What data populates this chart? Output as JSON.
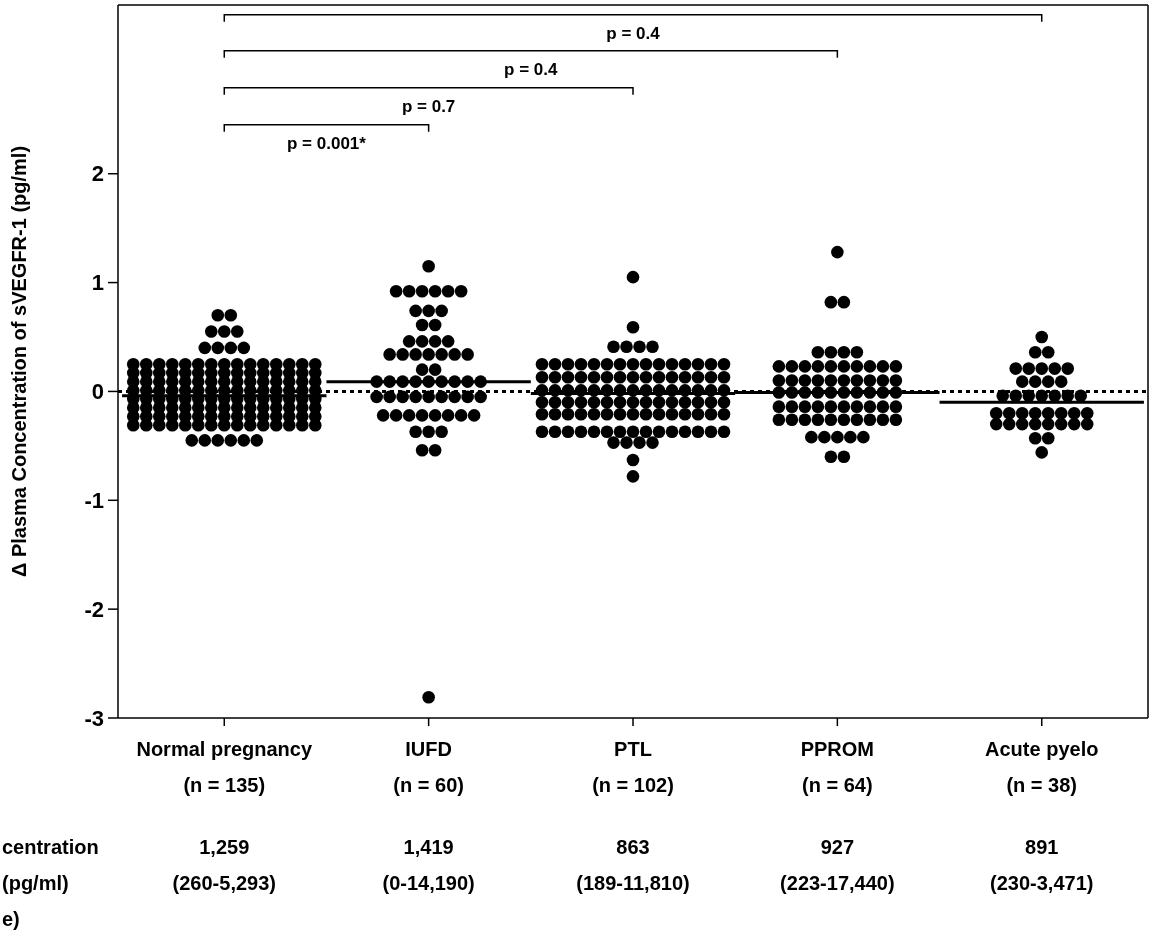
{
  "chart_data": {
    "type": "scatter",
    "ylabel": "Δ Plasma Concentration of sVEGFR-1 (pg/ml)",
    "categories": [
      "Normal pregnancy\n(n = 135)",
      "IUFD\n(n = 60)",
      "PTL\n(n = 102)",
      "PPROM\n(n = 64)",
      "Acute pyelo\n(n = 38)"
    ],
    "ylim": [
      -3,
      3.55
    ],
    "yticks": [
      -3,
      -2,
      -1,
      0,
      1,
      2
    ],
    "grid": false,
    "marker": "circle",
    "ref_lines": [
      {
        "axis": "y",
        "value": 0,
        "line_style": "dotted",
        "color": "#000000"
      }
    ],
    "annotations": [
      "p = 0.001*",
      "p = 0.7",
      "p = 0.4",
      "p = 0.4",
      "1,259\n(260-5,293)",
      "1,419\n(0-14,190)",
      "863\n(189-11,810)",
      "927\n(223-17,440)",
      "891\n(230-3,471)",
      "centration\n(pg/ml)\ne)"
    ],
    "series": [
      {
        "type": "box",
        "color": "#000000",
        "boxes": [
          {
            "low": -0.04,
            "q1": -0.04,
            "median": -0.04,
            "q3": -0.04,
            "high": -0.04
          },
          {
            "low": 0.09,
            "q1": 0.09,
            "median": 0.09,
            "q3": 0.09,
            "high": 0.09
          },
          {
            "low": -0.02,
            "q1": -0.02,
            "median": -0.02,
            "q3": -0.02,
            "high": -0.02
          },
          {
            "low": -0.01,
            "q1": -0.01,
            "median": -0.01,
            "q3": -0.01,
            "high": -0.01
          },
          {
            "low": -0.1,
            "q1": -0.1,
            "median": -0.1,
            "q3": -0.1,
            "high": -0.1
          }
        ]
      },
      {
        "color": "#000000",
        "x": [
          "Normal pregnancy\n(n = 135)",
          "Normal pregnancy\n(n = 135)",
          "Normal pregnancy\n(n = 135)",
          "Normal pregnancy\n(n = 135)",
          "Normal pregnancy\n(n = 135)",
          "Normal pregnancy\n(n = 135)",
          "Normal pregnancy\n(n = 135)",
          "Normal pregnancy\n(n = 135)",
          "Normal pregnancy\n(n = 135)",
          "Normal pregnancy\n(n = 135)",
          "Normal pregnancy\n(n = 135)",
          "Normal pregnancy\n(n = 135)",
          "Normal pregnancy\n(n = 135)",
          "Normal pregnancy\n(n = 135)",
          "Normal pregnancy\n(n = 135)",
          "Normal pregnancy\n(n = 135)",
          "Normal pregnancy\n(n = 135)",
          "Normal pregnancy\n(n = 135)",
          "Normal pregnancy\n(n = 135)",
          "Normal pregnancy\n(n = 135)",
          "Normal pregnancy\n(n = 135)",
          "Normal pregnancy\n(n = 135)",
          "Normal pregnancy\n(n = 135)",
          "Normal pregnancy\n(n = 135)",
          "Normal pregnancy\n(n = 135)",
          "Normal pregnancy\n(n = 135)",
          "Normal pregnancy\n(n = 135)",
          "Normal pregnancy\n(n = 135)",
          "Normal pregnancy\n(n = 135)",
          "Normal pregnancy\n(n = 135)",
          "Normal pregnancy\n(n = 135)",
          "Normal pregnancy\n(n = 135)",
          "Normal pregnancy\n(n = 135)",
          "Normal pregnancy\n(n = 135)",
          "Normal pregnancy\n(n = 135)",
          "Normal pregnancy\n(n = 135)",
          "Normal pregnancy\n(n = 135)",
          "Normal pregnancy\n(n = 135)",
          "Normal pregnancy\n(n = 135)",
          "Normal pregnancy\n(n = 135)",
          "Normal pregnancy\n(n = 135)",
          "Normal pregnancy\n(n = 135)",
          "Normal pregnancy\n(n = 135)",
          "Normal pregnancy\n(n = 135)",
          "Normal pregnancy\n(n = 135)",
          "Normal pregnancy\n(n = 135)",
          "Normal pregnancy\n(n = 135)",
          "Normal pregnancy\n(n = 135)",
          "Normal pregnancy\n(n = 135)",
          "Normal pregnancy\n(n = 135)",
          "Normal pregnancy\n(n = 135)",
          "Normal pregnancy\n(n = 135)",
          "Normal pregnancy\n(n = 135)",
          "Normal pregnancy\n(n = 135)",
          "Normal pregnancy\n(n = 135)",
          "Normal pregnancy\n(n = 135)",
          "Normal pregnancy\n(n = 135)",
          "Normal pregnancy\n(n = 135)",
          "Normal pregnancy\n(n = 135)",
          "Normal pregnancy\n(n = 135)",
          "Normal pregnancy\n(n = 135)",
          "Normal pregnancy\n(n = 135)",
          "Normal pregnancy\n(n = 135)",
          "Normal pregnancy\n(n = 135)",
          "Normal pregnancy\n(n = 135)",
          "Normal pregnancy\n(n = 135)",
          "Normal pregnancy\n(n = 135)",
          "Normal pregnancy\n(n = 135)",
          "Normal pregnancy\n(n = 135)",
          "Normal pregnancy\n(n = 135)",
          "Normal pregnancy\n(n = 135)",
          "Normal pregnancy\n(n = 135)",
          "Normal pregnancy\n(n = 135)",
          "Normal pregnancy\n(n = 135)",
          "Normal pregnancy\n(n = 135)",
          "Normal pregnancy\n(n = 135)",
          "Normal pregnancy\n(n = 135)",
          "Normal pregnancy\n(n = 135)",
          "Normal pregnancy\n(n = 135)",
          "Normal pregnancy\n(n = 135)",
          "Normal pregnancy\n(n = 135)",
          "Normal pregnancy\n(n = 135)",
          "Normal pregnancy\n(n = 135)",
          "Normal pregnancy\n(n = 135)",
          "Normal pregnancy\n(n = 135)",
          "Normal pregnancy\n(n = 135)",
          "Normal pregnancy\n(n = 135)",
          "Normal pregnancy\n(n = 135)",
          "Normal pregnancy\n(n = 135)",
          "Normal pregnancy\n(n = 135)",
          "Normal pregnancy\n(n = 135)",
          "Normal pregnancy\n(n = 135)",
          "Normal pregnancy\n(n = 135)",
          "Normal pregnancy\n(n = 135)",
          "Normal pregnancy\n(n = 135)",
          "Normal pregnancy\n(n = 135)",
          "Normal pregnancy\n(n = 135)",
          "Normal pregnancy\n(n = 135)",
          "Normal pregnancy\n(n = 135)",
          "Normal pregnancy\n(n = 135)",
          "Normal pregnancy\n(n = 135)",
          "Normal pregnancy\n(n = 135)",
          "Normal pregnancy\n(n = 135)",
          "Normal pregnancy\n(n = 135)",
          "Normal pregnancy\n(n = 135)",
          "Normal pregnancy\n(n = 135)",
          "Normal pregnancy\n(n = 135)",
          "Normal pregnancy\n(n = 135)",
          "Normal pregnancy\n(n = 135)",
          "Normal pregnancy\n(n = 135)",
          "Normal pregnancy\n(n = 135)",
          "Normal pregnancy\n(n = 135)",
          "Normal pregnancy\n(n = 135)",
          "Normal pregnancy\n(n = 135)",
          "Normal pregnancy\n(n = 135)",
          "Normal pregnancy\n(n = 135)",
          "Normal pregnancy\n(n = 135)",
          "Normal pregnancy\n(n = 135)",
          "Normal pregnancy\n(n = 135)",
          "Normal pregnancy\n(n = 135)",
          "Normal pregnancy\n(n = 135)",
          "Normal pregnancy\n(n = 135)",
          "Normal pregnancy\n(n = 135)",
          "Normal pregnancy\n(n = 135)",
          "Normal pregnancy\n(n = 135)",
          "Normal pregnancy\n(n = 135)",
          "Normal pregnancy\n(n = 135)",
          "Normal pregnancy\n(n = 135)",
          "Normal pregnancy\n(n = 135)",
          "Normal pregnancy\n(n = 135)",
          "Normal pregnancy\n(n = 135)",
          "Normal pregnancy\n(n = 135)",
          "Normal pregnancy\n(n = 135)",
          "Normal pregnancy\n(n = 135)",
          "Normal pregnancy\n(n = 135)"
        ],
        "values": [
          0.7,
          0.7,
          0.55,
          0.55,
          0.55,
          0.4,
          0.4,
          0.4,
          0.4,
          0.25,
          0.25,
          0.25,
          0.25,
          0.25,
          0.25,
          0.25,
          0.25,
          0.25,
          0.25,
          0.25,
          0.25,
          0.25,
          0.25,
          0.25,
          0.17,
          0.17,
          0.17,
          0.17,
          0.17,
          0.17,
          0.17,
          0.17,
          0.17,
          0.17,
          0.17,
          0.17,
          0.17,
          0.17,
          0.17,
          0.09,
          0.09,
          0.09,
          0.09,
          0.09,
          0.09,
          0.09,
          0.09,
          0.09,
          0.09,
          0.09,
          0.09,
          0.09,
          0.09,
          0.09,
          0.01,
          0.01,
          0.01,
          0.01,
          0.01,
          0.01,
          0.01,
          0.01,
          0.01,
          0.01,
          0.01,
          0.01,
          0.01,
          0.01,
          0.01,
          -0.07,
          -0.07,
          -0.07,
          -0.07,
          -0.07,
          -0.07,
          -0.07,
          -0.07,
          -0.07,
          -0.07,
          -0.07,
          -0.07,
          -0.07,
          -0.07,
          -0.07,
          -0.15,
          -0.15,
          -0.15,
          -0.15,
          -0.15,
          -0.15,
          -0.15,
          -0.15,
          -0.15,
          -0.15,
          -0.15,
          -0.15,
          -0.15,
          -0.15,
          -0.15,
          -0.23,
          -0.23,
          -0.23,
          -0.23,
          -0.23,
          -0.23,
          -0.23,
          -0.23,
          -0.23,
          -0.23,
          -0.23,
          -0.23,
          -0.23,
          -0.23,
          -0.23,
          -0.31,
          -0.31,
          -0.31,
          -0.31,
          -0.31,
          -0.31,
          -0.31,
          -0.31,
          -0.31,
          -0.31,
          -0.31,
          -0.31,
          -0.31,
          -0.31,
          -0.31,
          -0.45,
          -0.45,
          -0.45,
          -0.45,
          -0.45,
          -0.45
        ]
      },
      {
        "color": "#000000",
        "x": [
          "IUFD\n(n = 60)",
          "IUFD\n(n = 60)",
          "IUFD\n(n = 60)",
          "IUFD\n(n = 60)",
          "IUFD\n(n = 60)",
          "IUFD\n(n = 60)",
          "IUFD\n(n = 60)",
          "IUFD\n(n = 60)",
          "IUFD\n(n = 60)",
          "IUFD\n(n = 60)",
          "IUFD\n(n = 60)",
          "IUFD\n(n = 60)",
          "IUFD\n(n = 60)",
          "IUFD\n(n = 60)",
          "IUFD\n(n = 60)",
          "IUFD\n(n = 60)",
          "IUFD\n(n = 60)",
          "IUFD\n(n = 60)",
          "IUFD\n(n = 60)",
          "IUFD\n(n = 60)",
          "IUFD\n(n = 60)",
          "IUFD\n(n = 60)",
          "IUFD\n(n = 60)",
          "IUFD\n(n = 60)",
          "IUFD\n(n = 60)",
          "IUFD\n(n = 60)",
          "IUFD\n(n = 60)",
          "IUFD\n(n = 60)",
          "IUFD\n(n = 60)",
          "IUFD\n(n = 60)",
          "IUFD\n(n = 60)",
          "IUFD\n(n = 60)",
          "IUFD\n(n = 60)",
          "IUFD\n(n = 60)",
          "IUFD\n(n = 60)",
          "IUFD\n(n = 60)",
          "IUFD\n(n = 60)",
          "IUFD\n(n = 60)",
          "IUFD\n(n = 60)",
          "IUFD\n(n = 60)",
          "IUFD\n(n = 60)",
          "IUFD\n(n = 60)",
          "IUFD\n(n = 60)",
          "IUFD\n(n = 60)",
          "IUFD\n(n = 60)",
          "IUFD\n(n = 60)",
          "IUFD\n(n = 60)",
          "IUFD\n(n = 60)",
          "IUFD\n(n = 60)",
          "IUFD\n(n = 60)",
          "IUFD\n(n = 60)",
          "IUFD\n(n = 60)",
          "IUFD\n(n = 60)",
          "IUFD\n(n = 60)",
          "IUFD\n(n = 60)",
          "IUFD\n(n = 60)",
          "IUFD\n(n = 60)"
        ],
        "values": [
          1.15,
          0.92,
          0.92,
          0.92,
          0.92,
          0.92,
          0.92,
          0.74,
          0.74,
          0.74,
          0.61,
          0.61,
          0.46,
          0.46,
          0.46,
          0.46,
          0.34,
          0.34,
          0.34,
          0.34,
          0.34,
          0.34,
          0.34,
          0.2,
          0.2,
          0.09,
          0.09,
          0.09,
          0.09,
          0.09,
          0.09,
          0.09,
          0.09,
          0.09,
          -0.05,
          -0.05,
          -0.05,
          -0.05,
          -0.05,
          -0.05,
          -0.05,
          -0.05,
          -0.05,
          -0.22,
          -0.22,
          -0.22,
          -0.22,
          -0.22,
          -0.22,
          -0.22,
          -0.22,
          -0.37,
          -0.37,
          -0.37,
          -0.54,
          -0.54,
          -2.81
        ]
      },
      {
        "color": "#000000",
        "x": [
          "PTL\n(n = 102)",
          "PTL\n(n = 102)",
          "PTL\n(n = 102)",
          "PTL\n(n = 102)",
          "PTL\n(n = 102)",
          "PTL\n(n = 102)",
          "PTL\n(n = 102)",
          "PTL\n(n = 102)",
          "PTL\n(n = 102)",
          "PTL\n(n = 102)",
          "PTL\n(n = 102)",
          "PTL\n(n = 102)",
          "PTL\n(n = 102)",
          "PTL\n(n = 102)",
          "PTL\n(n = 102)",
          "PTL\n(n = 102)",
          "PTL\n(n = 102)",
          "PTL\n(n = 102)",
          "PTL\n(n = 102)",
          "PTL\n(n = 102)",
          "PTL\n(n = 102)",
          "PTL\n(n = 102)",
          "PTL\n(n = 102)",
          "PTL\n(n = 102)",
          "PTL\n(n = 102)",
          "PTL\n(n = 102)",
          "PTL\n(n = 102)",
          "PTL\n(n = 102)",
          "PTL\n(n = 102)",
          "PTL\n(n = 102)",
          "PTL\n(n = 102)",
          "PTL\n(n = 102)",
          "PTL\n(n = 102)",
          "PTL\n(n = 102)",
          "PTL\n(n = 102)",
          "PTL\n(n = 102)",
          "PTL\n(n = 102)",
          "PTL\n(n = 102)",
          "PTL\n(n = 102)",
          "PTL\n(n = 102)",
          "PTL\n(n = 102)",
          "PTL\n(n = 102)",
          "PTL\n(n = 102)",
          "PTL\n(n = 102)",
          "PTL\n(n = 102)",
          "PTL\n(n = 102)",
          "PTL\n(n = 102)",
          "PTL\n(n = 102)",
          "PTL\n(n = 102)",
          "PTL\n(n = 102)",
          "PTL\n(n = 102)",
          "PTL\n(n = 102)",
          "PTL\n(n = 102)",
          "PTL\n(n = 102)",
          "PTL\n(n = 102)",
          "PTL\n(n = 102)",
          "PTL\n(n = 102)",
          "PTL\n(n = 102)",
          "PTL\n(n = 102)",
          "PTL\n(n = 102)",
          "PTL\n(n = 102)",
          "PTL\n(n = 102)",
          "PTL\n(n = 102)",
          "PTL\n(n = 102)",
          "PTL\n(n = 102)",
          "PTL\n(n = 102)",
          "PTL\n(n = 102)",
          "PTL\n(n = 102)",
          "PTL\n(n = 102)",
          "PTL\n(n = 102)",
          "PTL\n(n = 102)",
          "PTL\n(n = 102)",
          "PTL\n(n = 102)",
          "PTL\n(n = 102)",
          "PTL\n(n = 102)",
          "PTL\n(n = 102)",
          "PTL\n(n = 102)",
          "PTL\n(n = 102)",
          "PTL\n(n = 102)",
          "PTL\n(n = 102)",
          "PTL\n(n = 102)",
          "PTL\n(n = 102)",
          "PTL\n(n = 102)",
          "PTL\n(n = 102)",
          "PTL\n(n = 102)",
          "PTL\n(n = 102)",
          "PTL\n(n = 102)",
          "PTL\n(n = 102)",
          "PTL\n(n = 102)",
          "PTL\n(n = 102)",
          "PTL\n(n = 102)",
          "PTL\n(n = 102)",
          "PTL\n(n = 102)",
          "PTL\n(n = 102)",
          "PTL\n(n = 102)",
          "PTL\n(n = 102)",
          "PTL\n(n = 102)",
          "PTL\n(n = 102)",
          "PTL\n(n = 102)",
          "PTL\n(n = 102)",
          "PTL\n(n = 102)",
          "PTL\n(n = 102)"
        ],
        "values": [
          1.05,
          0.59,
          0.41,
          0.41,
          0.41,
          0.41,
          0.25,
          0.25,
          0.25,
          0.25,
          0.25,
          0.25,
          0.25,
          0.25,
          0.25,
          0.25,
          0.25,
          0.25,
          0.25,
          0.25,
          0.25,
          0.13,
          0.13,
          0.13,
          0.13,
          0.13,
          0.13,
          0.13,
          0.13,
          0.13,
          0.13,
          0.13,
          0.13,
          0.13,
          0.13,
          0.13,
          0.01,
          0.01,
          0.01,
          0.01,
          0.01,
          0.01,
          0.01,
          0.01,
          0.01,
          0.01,
          0.01,
          0.01,
          0.01,
          0.01,
          0.01,
          -0.1,
          -0.1,
          -0.1,
          -0.1,
          -0.1,
          -0.1,
          -0.1,
          -0.1,
          -0.1,
          -0.1,
          -0.1,
          -0.1,
          -0.1,
          -0.1,
          -0.1,
          -0.21,
          -0.21,
          -0.21,
          -0.21,
          -0.21,
          -0.21,
          -0.21,
          -0.21,
          -0.21,
          -0.21,
          -0.21,
          -0.21,
          -0.21,
          -0.21,
          -0.21,
          -0.37,
          -0.37,
          -0.37,
          -0.37,
          -0.37,
          -0.37,
          -0.37,
          -0.37,
          -0.37,
          -0.37,
          -0.37,
          -0.37,
          -0.37,
          -0.37,
          -0.37,
          -0.47,
          -0.47,
          -0.47,
          -0.47,
          -0.63,
          -0.78
        ]
      },
      {
        "color": "#000000",
        "x": [
          "PPROM\n(n = 64)",
          "PPROM\n(n = 64)",
          "PPROM\n(n = 64)",
          "PPROM\n(n = 64)",
          "PPROM\n(n = 64)",
          "PPROM\n(n = 64)",
          "PPROM\n(n = 64)",
          "PPROM\n(n = 64)",
          "PPROM\n(n = 64)",
          "PPROM\n(n = 64)",
          "PPROM\n(n = 64)",
          "PPROM\n(n = 64)",
          "PPROM\n(n = 64)",
          "PPROM\n(n = 64)",
          "PPROM\n(n = 64)",
          "PPROM\n(n = 64)",
          "PPROM\n(n = 64)",
          "PPROM\n(n = 64)",
          "PPROM\n(n = 64)",
          "PPROM\n(n = 64)",
          "PPROM\n(n = 64)",
          "PPROM\n(n = 64)",
          "PPROM\n(n = 64)",
          "PPROM\n(n = 64)",
          "PPROM\n(n = 64)",
          "PPROM\n(n = 64)",
          "PPROM\n(n = 64)",
          "PPROM\n(n = 64)",
          "PPROM\n(n = 64)",
          "PPROM\n(n = 64)",
          "PPROM\n(n = 64)",
          "PPROM\n(n = 64)",
          "PPROM\n(n = 64)",
          "PPROM\n(n = 64)",
          "PPROM\n(n = 64)",
          "PPROM\n(n = 64)",
          "PPROM\n(n = 64)",
          "PPROM\n(n = 64)",
          "PPROM\n(n = 64)",
          "PPROM\n(n = 64)",
          "PPROM\n(n = 64)",
          "PPROM\n(n = 64)",
          "PPROM\n(n = 64)",
          "PPROM\n(n = 64)",
          "PPROM\n(n = 64)",
          "PPROM\n(n = 64)",
          "PPROM\n(n = 64)",
          "PPROM\n(n = 64)",
          "PPROM\n(n = 64)",
          "PPROM\n(n = 64)",
          "PPROM\n(n = 64)",
          "PPROM\n(n = 64)",
          "PPROM\n(n = 64)",
          "PPROM\n(n = 64)",
          "PPROM\n(n = 64)",
          "PPROM\n(n = 64)",
          "PPROM\n(n = 64)",
          "PPROM\n(n = 64)",
          "PPROM\n(n = 64)",
          "PPROM\n(n = 64)",
          "PPROM\n(n = 64)",
          "PPROM\n(n = 64)",
          "PPROM\n(n = 64)",
          "PPROM\n(n = 64)"
        ],
        "values": [
          1.28,
          0.82,
          0.82,
          0.36,
          0.36,
          0.36,
          0.36,
          0.23,
          0.23,
          0.23,
          0.23,
          0.23,
          0.23,
          0.23,
          0.23,
          0.23,
          0.23,
          0.1,
          0.1,
          0.1,
          0.1,
          0.1,
          0.1,
          0.1,
          0.1,
          0.1,
          0.1,
          -0.01,
          -0.01,
          -0.01,
          -0.01,
          -0.01,
          -0.01,
          -0.01,
          -0.01,
          -0.01,
          -0.01,
          -0.14,
          -0.14,
          -0.14,
          -0.14,
          -0.14,
          -0.14,
          -0.14,
          -0.14,
          -0.14,
          -0.14,
          -0.26,
          -0.26,
          -0.26,
          -0.26,
          -0.26,
          -0.26,
          -0.26,
          -0.26,
          -0.26,
          -0.26,
          -0.42,
          -0.42,
          -0.42,
          -0.42,
          -0.42,
          -0.6,
          -0.6
        ]
      },
      {
        "color": "#000000",
        "x": [
          "Acute pyelo\n(n = 38)",
          "Acute pyelo\n(n = 38)",
          "Acute pyelo\n(n = 38)",
          "Acute pyelo\n(n = 38)",
          "Acute pyelo\n(n = 38)",
          "Acute pyelo\n(n = 38)",
          "Acute pyelo\n(n = 38)",
          "Acute pyelo\n(n = 38)",
          "Acute pyelo\n(n = 38)",
          "Acute pyelo\n(n = 38)",
          "Acute pyelo\n(n = 38)",
          "Acute pyelo\n(n = 38)",
          "Acute pyelo\n(n = 38)",
          "Acute pyelo\n(n = 38)",
          "Acute pyelo\n(n = 38)",
          "Acute pyelo\n(n = 38)",
          "Acute pyelo\n(n = 38)",
          "Acute pyelo\n(n = 38)",
          "Acute pyelo\n(n = 38)",
          "Acute pyelo\n(n = 38)",
          "Acute pyelo\n(n = 38)",
          "Acute pyelo\n(n = 38)",
          "Acute pyelo\n(n = 38)",
          "Acute pyelo\n(n = 38)",
          "Acute pyelo\n(n = 38)",
          "Acute pyelo\n(n = 38)",
          "Acute pyelo\n(n = 38)",
          "Acute pyelo\n(n = 38)",
          "Acute pyelo\n(n = 38)",
          "Acute pyelo\n(n = 38)",
          "Acute pyelo\n(n = 38)",
          "Acute pyelo\n(n = 38)",
          "Acute pyelo\n(n = 38)",
          "Acute pyelo\n(n = 38)",
          "Acute pyelo\n(n = 38)",
          "Acute pyelo\n(n = 38)",
          "Acute pyelo\n(n = 38)",
          "Acute pyelo\n(n = 38)"
        ],
        "values": [
          0.5,
          0.36,
          0.36,
          0.21,
          0.21,
          0.21,
          0.21,
          0.21,
          0.09,
          0.09,
          0.09,
          0.09,
          -0.04,
          -0.04,
          -0.04,
          -0.04,
          -0.04,
          -0.04,
          -0.04,
          -0.2,
          -0.2,
          -0.2,
          -0.2,
          -0.2,
          -0.2,
          -0.2,
          -0.2,
          -0.3,
          -0.3,
          -0.3,
          -0.3,
          -0.3,
          -0.3,
          -0.3,
          -0.3,
          -0.43,
          -0.43,
          -0.56
        ]
      }
    ]
  }
}
